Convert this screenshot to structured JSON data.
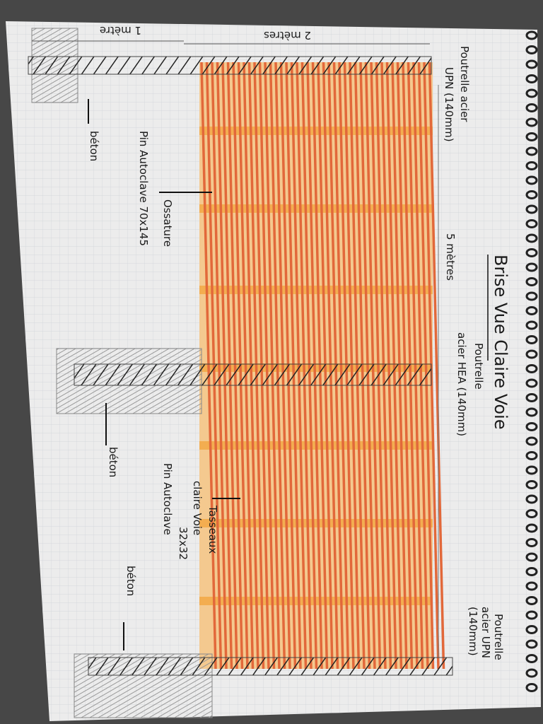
{
  "title": "Brise Vue Claire Voie",
  "dimensions": {
    "width": "5 mètres",
    "depth": "2 mètres",
    "post": "1 mètre"
  },
  "labels": {
    "upn_top": [
      "Poutrelle acier",
      "UPN (140mm)"
    ],
    "hea": [
      "Poutrelle",
      "acier HEA (140mm)"
    ],
    "upn_bottom": [
      "Poutrelle",
      "acier UPN",
      "(140mm)"
    ],
    "frame": [
      "Ossature",
      "Pin Autoclave 70x145"
    ],
    "slats": [
      "Tasseaux",
      "claire Voie",
      "32x32",
      "Pin Autoclave"
    ],
    "concrete": [
      "béton",
      "béton",
      "béton"
    ]
  }
}
